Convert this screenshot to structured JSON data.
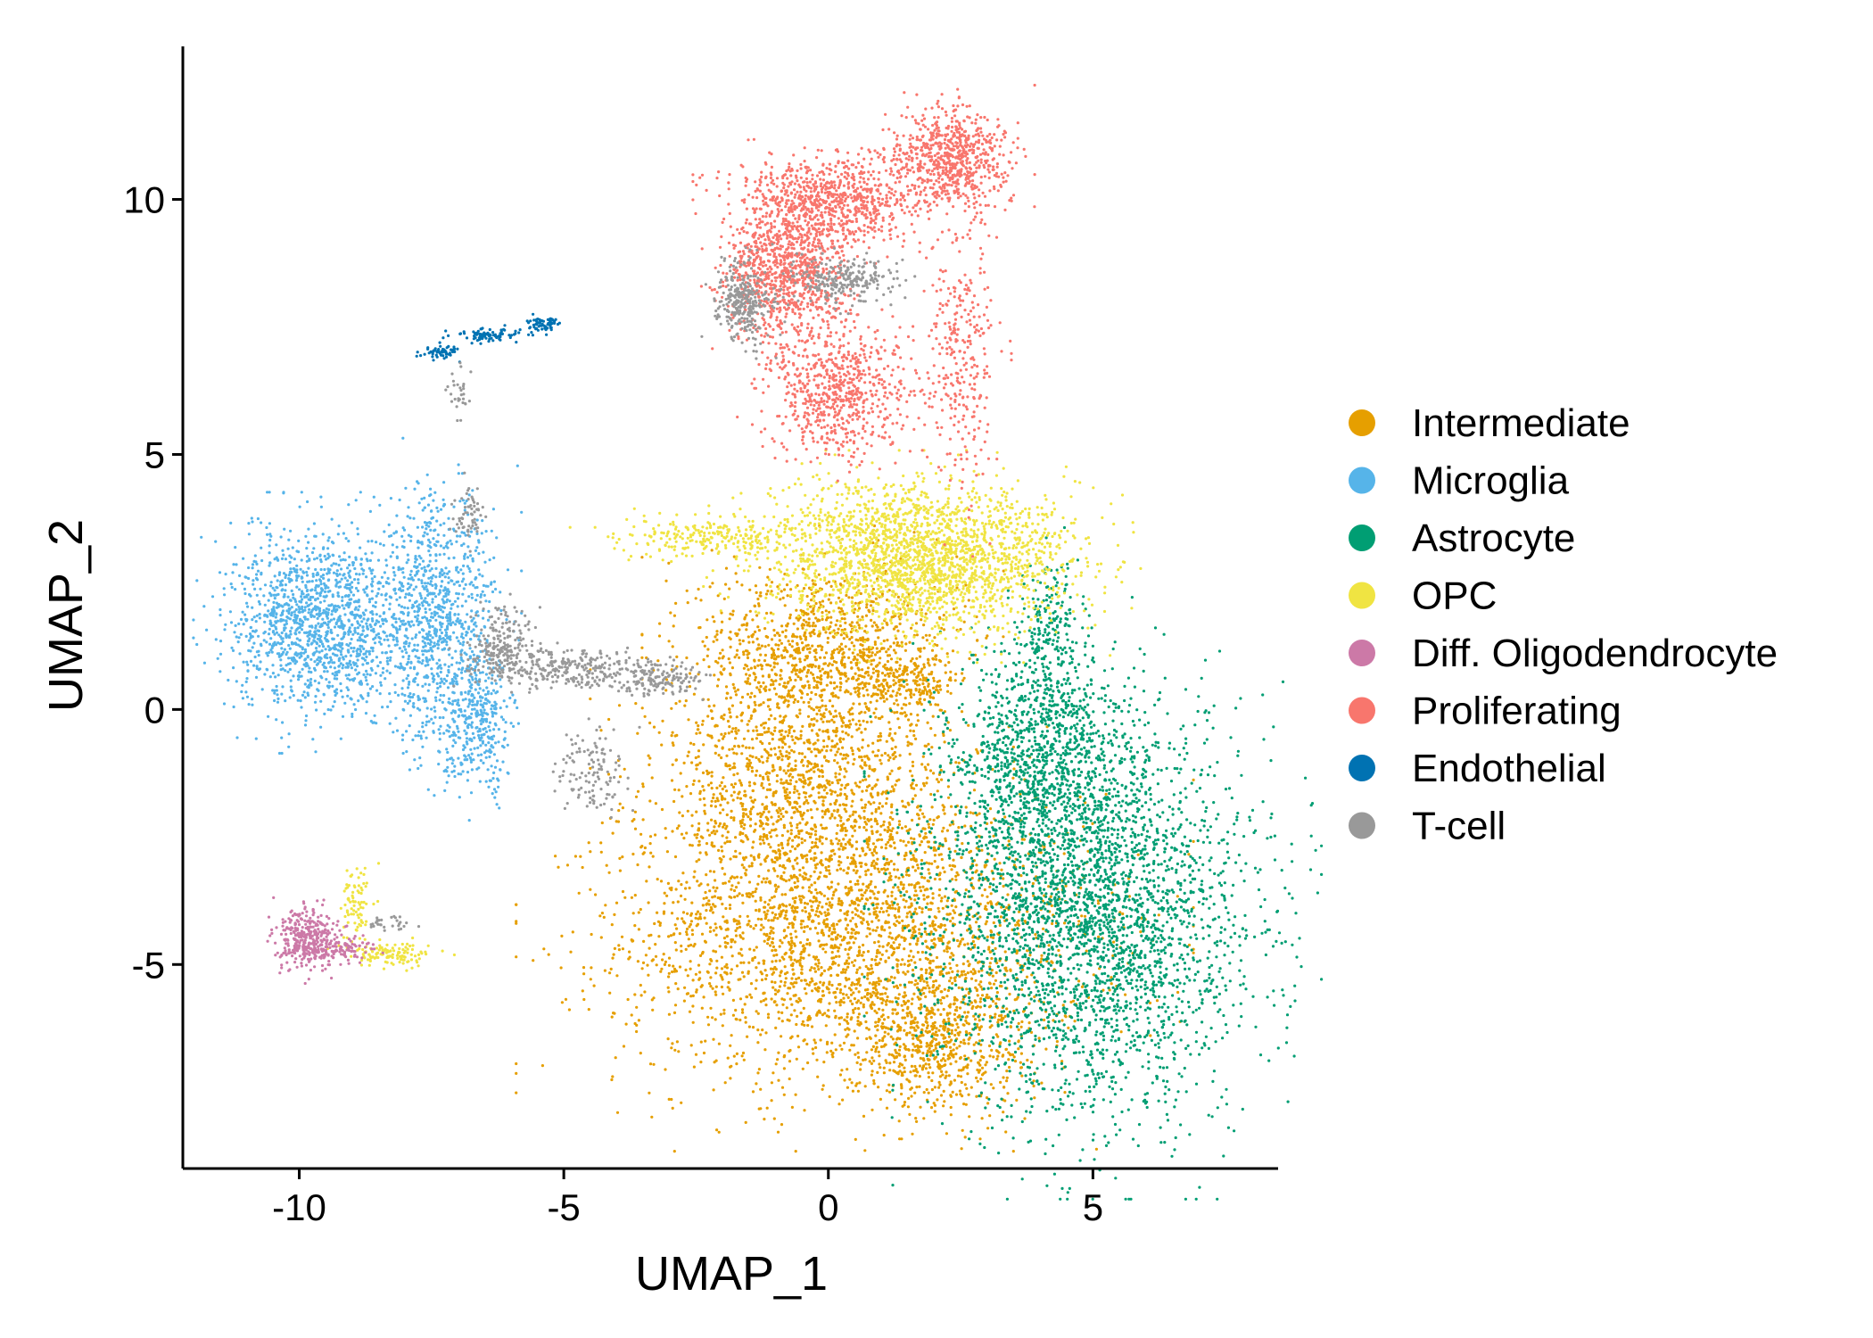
{
  "chart_data": {
    "type": "scatter",
    "title": "",
    "xlabel": "UMAP_1",
    "ylabel": "UMAP_2",
    "xlim": [
      -12.2,
      8.5
    ],
    "ylim": [
      -9.0,
      13.0
    ],
    "xticks": [
      -10,
      -5,
      0,
      5
    ],
    "yticks": [
      -5,
      0,
      5,
      10
    ],
    "xtick_labels": [
      "-10",
      "-5",
      "0",
      "5"
    ],
    "ytick_labels": [
      "-5",
      "0",
      "5",
      "10"
    ],
    "grid": false,
    "legend_position": "right",
    "series": [
      {
        "name": "Intermediate",
        "color": "#E69F00",
        "regions": [
          {
            "cx": 0.5,
            "cy": -4.5,
            "rx": 4.0,
            "ry": 2.6,
            "n": 2600
          },
          {
            "cx": -0.5,
            "cy": -1.5,
            "rx": 2.5,
            "ry": 2.5,
            "n": 1600
          },
          {
            "cx": 0.0,
            "cy": 1.2,
            "rx": 2.2,
            "ry": 1.5,
            "n": 1000
          },
          {
            "cx": 2.0,
            "cy": -6.5,
            "rx": 1.6,
            "ry": 1.2,
            "n": 600
          },
          {
            "cx": 1.5,
            "cy": 0.5,
            "rx": 0.6,
            "ry": 0.5,
            "n": 150
          }
        ]
      },
      {
        "name": "Microglia",
        "color": "#56B4E9",
        "regions": [
          {
            "cx": -9.6,
            "cy": 1.7,
            "rx": 1.5,
            "ry": 1.6,
            "n": 1400
          },
          {
            "cx": -7.4,
            "cy": 1.8,
            "rx": 1.0,
            "ry": 2.2,
            "n": 900
          },
          {
            "cx": -6.6,
            "cy": -0.3,
            "rx": 0.6,
            "ry": 1.2,
            "n": 350
          }
        ]
      },
      {
        "name": "Astrocyte",
        "color": "#009E73",
        "regions": [
          {
            "cx": 5.0,
            "cy": -4.0,
            "rx": 2.7,
            "ry": 3.5,
            "n": 3200
          },
          {
            "cx": 4.0,
            "cy": -1.0,
            "rx": 1.5,
            "ry": 2.0,
            "n": 1000
          },
          {
            "cx": 4.2,
            "cy": 1.5,
            "rx": 0.5,
            "ry": 1.5,
            "n": 200
          }
        ]
      },
      {
        "name": "OPC",
        "color": "#F0E442",
        "regions": [
          {
            "cx": 1.8,
            "cy": 3.0,
            "rx": 2.6,
            "ry": 1.3,
            "n": 2200
          },
          {
            "cx": -2.0,
            "cy": 3.4,
            "rx": 1.8,
            "ry": 0.35,
            "n": 250
          },
          {
            "cx": -8.3,
            "cy": -4.8,
            "rx": 0.8,
            "ry": 0.2,
            "n": 120
          },
          {
            "cx": -8.9,
            "cy": -3.8,
            "rx": 0.25,
            "ry": 0.6,
            "n": 80
          }
        ]
      },
      {
        "name": "Diff. Oligodendrocyte",
        "color": "#CC79A7",
        "regions": [
          {
            "cx": -9.9,
            "cy": -4.5,
            "rx": 0.5,
            "ry": 0.55,
            "n": 350
          },
          {
            "cx": -9.2,
            "cy": -4.7,
            "rx": 0.6,
            "ry": 0.25,
            "n": 100
          }
        ]
      },
      {
        "name": "Proliferating",
        "color": "#F8766D",
        "regions": [
          {
            "cx": 2.3,
            "cy": 10.8,
            "rx": 1.0,
            "ry": 0.9,
            "n": 700
          },
          {
            "cx": 0.0,
            "cy": 10.0,
            "rx": 1.6,
            "ry": 0.8,
            "n": 800
          },
          {
            "cx": -0.8,
            "cy": 8.5,
            "rx": 1.0,
            "ry": 1.2,
            "n": 900
          },
          {
            "cx": 0.2,
            "cy": 6.2,
            "rx": 1.2,
            "ry": 1.2,
            "n": 700
          },
          {
            "cx": 2.5,
            "cy": 7.0,
            "rx": 0.6,
            "ry": 2.5,
            "n": 300
          }
        ]
      },
      {
        "name": "Endothelial",
        "color": "#0072B2",
        "regions": [
          {
            "cx": -7.3,
            "cy": 7.0,
            "rx": 0.3,
            "ry": 0.12,
            "n": 60
          },
          {
            "cx": -6.4,
            "cy": 7.35,
            "rx": 0.6,
            "ry": 0.12,
            "n": 80
          },
          {
            "cx": -5.4,
            "cy": 7.55,
            "rx": 0.3,
            "ry": 0.15,
            "n": 60
          }
        ]
      },
      {
        "name": "T-cell",
        "color": "#999999",
        "regions": [
          {
            "cx": -5.0,
            "cy": 0.8,
            "rx": 1.3,
            "ry": 0.35,
            "n": 300
          },
          {
            "cx": -3.2,
            "cy": 0.6,
            "rx": 0.8,
            "ry": 0.3,
            "n": 150
          },
          {
            "cx": -6.2,
            "cy": 1.3,
            "rx": 0.6,
            "ry": 0.6,
            "n": 200
          },
          {
            "cx": -4.5,
            "cy": -1.2,
            "rx": 0.6,
            "ry": 0.8,
            "n": 120
          },
          {
            "cx": -1.6,
            "cy": 8.0,
            "rx": 0.5,
            "ry": 0.7,
            "n": 300
          },
          {
            "cx": 0.3,
            "cy": 8.4,
            "rx": 0.9,
            "ry": 0.4,
            "n": 250
          },
          {
            "cx": -7.0,
            "cy": 6.3,
            "rx": 0.2,
            "ry": 0.5,
            "n": 30
          },
          {
            "cx": -6.8,
            "cy": 3.9,
            "rx": 0.3,
            "ry": 0.5,
            "n": 60
          },
          {
            "cx": -8.3,
            "cy": -4.2,
            "rx": 0.4,
            "ry": 0.15,
            "n": 30
          }
        ]
      }
    ]
  }
}
